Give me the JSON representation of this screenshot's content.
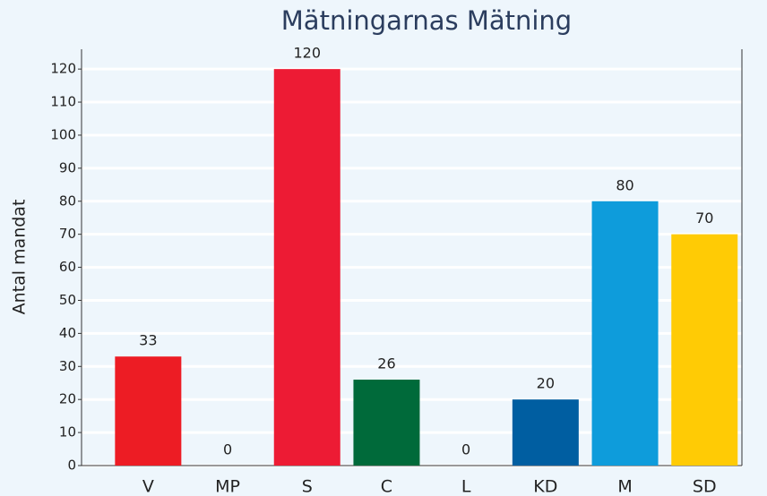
{
  "chart_data": {
    "type": "bar",
    "title": "Mätningarnas Mätning",
    "y_label": "Antal mandat",
    "categories": [
      "V",
      "MP",
      "S",
      "C",
      "L",
      "KD",
      "M",
      "SD"
    ],
    "values": [
      33,
      0,
      120,
      26,
      0,
      20,
      80,
      70
    ],
    "colors": [
      "#ed1c24",
      null,
      "#ed1b34",
      "#006a3a",
      null,
      "#005ea1",
      "#0e9cdb",
      "#ffcb05"
    ],
    "ylim": [
      0,
      126
    ],
    "yticks": [
      0,
      10,
      20,
      30,
      40,
      50,
      60,
      70,
      80,
      90,
      100,
      110,
      120
    ],
    "grid": true
  }
}
